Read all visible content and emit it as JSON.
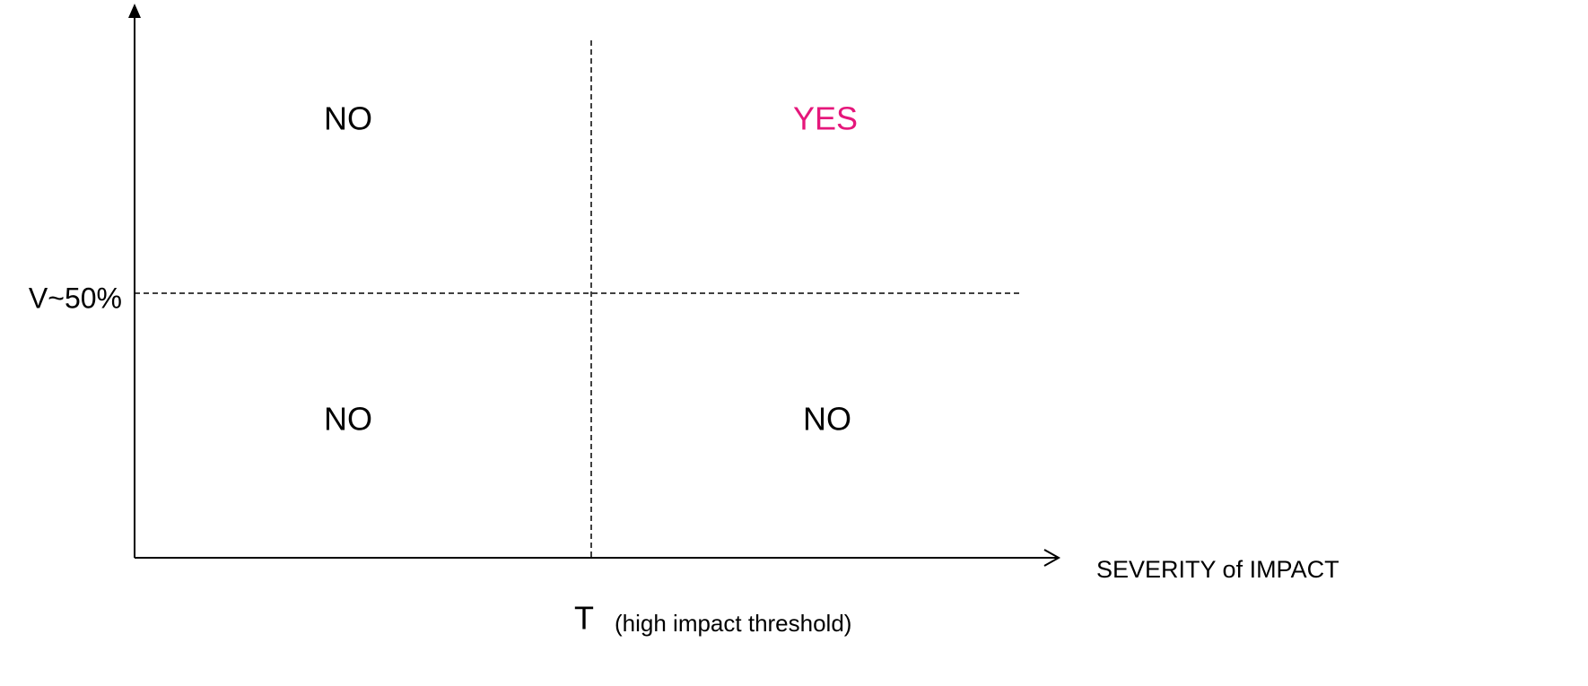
{
  "quadrants": {
    "top_left": "NO",
    "top_right": "YES",
    "bottom_left": "NO",
    "bottom_right": "NO"
  },
  "y_axis": {
    "marker": "V~50%"
  },
  "x_axis": {
    "label": "SEVERITY of IMPACT",
    "marker": "T",
    "marker_note": "(high impact threshold)"
  }
}
